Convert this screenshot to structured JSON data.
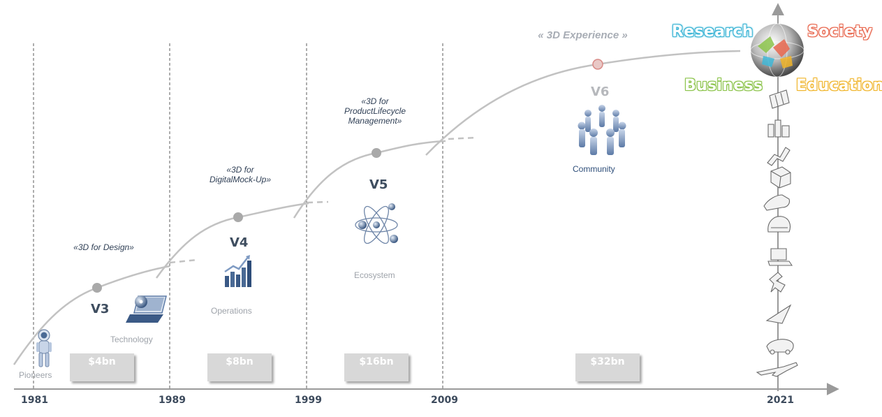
{
  "colors": {
    "curve": "#c2c2c2",
    "milestone_dot": "#a9a9a9",
    "v6_dot": "#d88a86",
    "axis": "#9a9a9a",
    "research": "#3fb6d6",
    "society": "#e8664d",
    "business": "#8bc34a",
    "education": "#f0b429"
  },
  "timeline": {
    "years": [
      "1981",
      "1989",
      "1999",
      "2009",
      "2021"
    ]
  },
  "phases": [
    {
      "version": "V3",
      "tagline": "«3D for Design»",
      "icon": "laptop-icon",
      "caption": "Technology",
      "revenue": "$4bn"
    },
    {
      "version": "V4",
      "tagline": "«3D for DigitalMock-Up»",
      "icon": "bar-chart-icon",
      "caption": "Operations",
      "revenue": "$8bn"
    },
    {
      "version": "V5",
      "tagline": "«3D for ProductLifecycle Management»",
      "icon": "atom-icon",
      "caption": "Ecosystem",
      "revenue": "$16bn"
    },
    {
      "version": "V6",
      "tagline": "« 3D Experience »",
      "icon": "people-circle-icon",
      "caption": "Community",
      "revenue": "$32bn"
    }
  ],
  "pioneers": {
    "icon": "astronaut-icon",
    "caption": "Pioneers"
  },
  "quadrants": {
    "globe_icon": "globe-icon",
    "research": "Research",
    "society": "Society",
    "business": "Business",
    "education": "Education"
  },
  "industry_icons": [
    "sheet-icon",
    "buildings-icon",
    "robot-arm-icon",
    "package-icon",
    "shoe-icon",
    "helmet-icon",
    "laptop-icon",
    "statue-icon",
    "sail-icon",
    "car-icon",
    "airplane-icon"
  ]
}
